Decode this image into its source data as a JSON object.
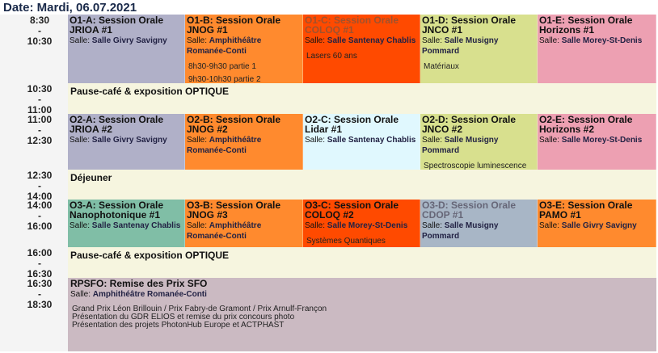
{
  "date_label": "Date: Mardi, 06.07.2021",
  "room_prefix": "Salle: ",
  "slots": [
    {
      "start": "8:30",
      "end": "10:30",
      "sessions": [
        {
          "title": "O1-A: Session Orale JRIOA #1",
          "room": "Salle Givry Savigny",
          "notes": [],
          "color": "#b0b0c8"
        },
        {
          "title": "O1-B: Session Orale JNOG #1",
          "room": "Amphithéâtre Romanée-Conti",
          "notes": [
            "8h30-9h30 partie 1",
            "9h30-10h30 partie 2"
          ],
          "color": "#ff8a2e"
        },
        {
          "title": "O1-C: Session Orale COLOQ #1",
          "room": "Salle Santenay Chablis",
          "notes": [
            "Lasers 60 ans"
          ],
          "color": "#ff4a00"
        },
        {
          "title": "O1-D: Session Orale JNCO #1",
          "room": "Salle Musigny Pommard",
          "notes": [
            "Matériaux"
          ],
          "color": "#d8e08e"
        },
        {
          "title": "O1-E: Session Orale Horizons #1",
          "room": "Salle Morey-St-Denis",
          "notes": [],
          "color": "#eda0b2"
        }
      ]
    },
    {
      "start": "10:30",
      "end": "11:00",
      "break": "Pause-café & exposition OPTIQUE"
    },
    {
      "start": "11:00",
      "end": "12:30",
      "sessions": [
        {
          "title": "O2-A: Session Orale JRIOA #2",
          "room": "Salle Givry Savigny",
          "notes": [],
          "color": "#b0b0c8"
        },
        {
          "title": "O2-B: Session Orale JNOG #2",
          "room": "Amphithéâtre Romanée-Conti",
          "notes": [],
          "color": "#ff8a2e"
        },
        {
          "title": "O2-C: Session Orale Lidar #1",
          "room": "Salle Santenay Chablis",
          "notes": [],
          "color": "#e0f8fe"
        },
        {
          "title": "O2-D: Session Orale JNCO #2",
          "room": "Salle Musigny Pommard",
          "notes": [
            "Spectroscopie luminescence et information quantique"
          ],
          "color": "#d8e08e"
        },
        {
          "title": "O2-E: Session Orale Horizons #2",
          "room": "Salle Morey-St-Denis",
          "notes": [],
          "color": "#eda0b2"
        }
      ]
    },
    {
      "start": "12:30",
      "end": "14:00",
      "break": "Déjeuner"
    },
    {
      "start": "14:00",
      "end": "16:00",
      "sessions": [
        {
          "title": "O3-A: Session Orale Nanophotonique #1",
          "room": "Salle Santenay Chablis",
          "notes": [],
          "color": "#80bea6"
        },
        {
          "title": "O3-B: Session Orale JNOG #3",
          "room": "Amphithéâtre Romanée-Conti",
          "notes": [],
          "color": "#ff8a2e"
        },
        {
          "title": "O3-C: Session Orale COLOQ #2",
          "room": "Salle Morey-St-Denis",
          "notes": [
            "Systèmes Quantiques"
          ],
          "color": "#ff4a00"
        },
        {
          "title": "O3-D: Session Orale CDOP #1",
          "room": "Salle Musigny Pommard",
          "notes": [],
          "color": "#a8b6c6"
        },
        {
          "title": "O3-E: Session Orale PAMO #1",
          "room": "Salle Givry Savigny",
          "notes": [],
          "color": "#ff8a2e"
        }
      ]
    },
    {
      "start": "16:00",
      "end": "16:30",
      "break": "Pause-café & exposition OPTIQUE"
    },
    {
      "start": "16:30",
      "end": "18:30",
      "plenary": {
        "title": "RPSFO: Remise des Prix SFO",
        "room": "Amphithéâtre Romanée-Conti",
        "notes": [
          "Grand Prix Léon Brillouin  / Prix Fabry-de Gramont  / Prix Arnulf-Françon",
          "Présentation du GDR ELIOS et remise du prix concours photo",
          "Présentation des projets PhotonHub Europe et ACTPHAST"
        ]
      }
    }
  ]
}
